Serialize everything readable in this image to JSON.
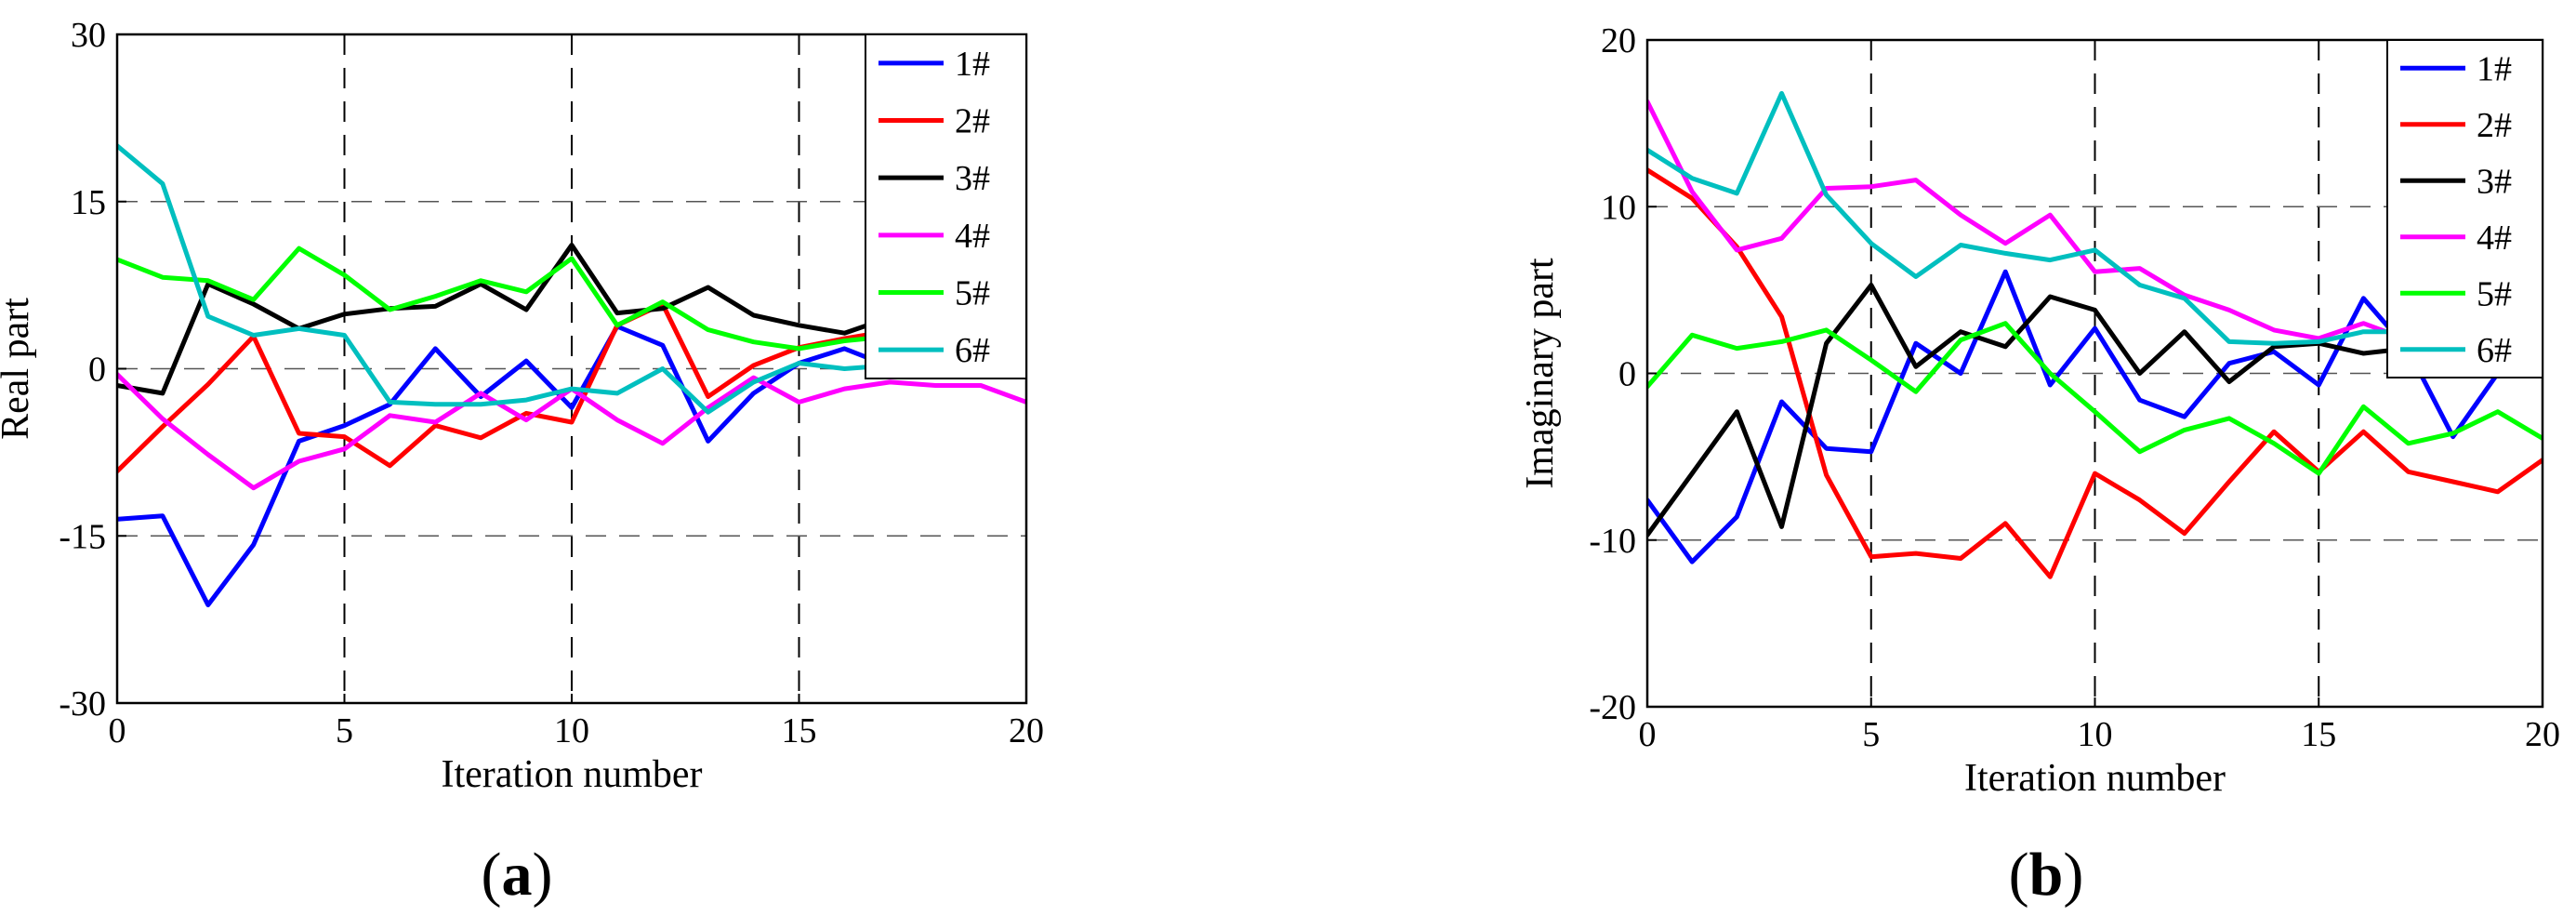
{
  "figure": {
    "panels": [
      {
        "id": "a",
        "label_open": "(",
        "label_letter": "a",
        "label_close": ")"
      },
      {
        "id": "b",
        "label_open": "(",
        "label_letter": "b",
        "label_close": ")"
      }
    ]
  },
  "colors": {
    "1#": "#0000ff",
    "2#": "#ff0000",
    "3#": "#000000",
    "4#": "#ff00ff",
    "5#": "#00ff00",
    "6#": "#00bfbf"
  },
  "chart_data": [
    {
      "type": "line",
      "title": "",
      "xlabel": "Iteration number",
      "ylabel": "Real part",
      "xlim": [
        0,
        20
      ],
      "ylim": [
        -30,
        30
      ],
      "xticks": [
        0,
        5,
        10,
        15,
        20
      ],
      "yticks": [
        -30,
        -15,
        0,
        15,
        30
      ],
      "grid": "dashed",
      "legend_position": "top-right",
      "x": [
        0,
        1,
        2,
        3,
        4,
        5,
        6,
        7,
        8,
        9,
        10,
        11,
        12,
        13,
        14,
        15,
        16,
        17,
        18,
        19,
        20
      ],
      "series": [
        {
          "name": "1#",
          "values": [
            -13.5,
            -13.2,
            -21.2,
            -15.8,
            -6.5,
            -5.1,
            -3.2,
            1.8,
            -2.5,
            0.7,
            -3.5,
            3.8,
            2.1,
            -6.5,
            -2.2,
            0.5,
            1.8,
            0.2,
            null,
            null,
            null
          ]
        },
        {
          "name": "2#",
          "values": [
            -9.2,
            -5.2,
            -1.4,
            2.9,
            -5.8,
            -6.1,
            -8.7,
            -5.1,
            -6.2,
            -4.0,
            -4.8,
            3.9,
            5.8,
            -2.5,
            0.3,
            1.9,
            2.7,
            3.4,
            null,
            null,
            null
          ]
        },
        {
          "name": "3#",
          "values": [
            -1.5,
            -2.2,
            7.6,
            5.8,
            3.6,
            4.9,
            5.4,
            5.6,
            7.6,
            5.3,
            11.1,
            5.0,
            5.4,
            7.3,
            4.8,
            3.9,
            3.2,
            4.6,
            null,
            null,
            null
          ]
        },
        {
          "name": "4#",
          "values": [
            -0.5,
            -4.5,
            -7.7,
            -10.7,
            -8.3,
            -7.2,
            -4.2,
            -4.8,
            -2.2,
            -4.6,
            -1.8,
            -4.6,
            -6.7,
            -3.5,
            -0.8,
            -3.0,
            -1.8,
            -1.2,
            -1.5,
            -1.5,
            -3.0
          ]
        },
        {
          "name": "5#",
          "values": [
            9.8,
            8.2,
            7.9,
            6.2,
            10.8,
            8.4,
            5.3,
            6.5,
            7.9,
            6.9,
            9.9,
            3.9,
            6.0,
            3.5,
            2.4,
            1.8,
            2.5,
            2.9,
            null,
            null,
            null
          ]
        },
        {
          "name": "6#",
          "values": [
            20.0,
            16.6,
            4.7,
            3.0,
            3.6,
            3.0,
            -3.0,
            -3.2,
            -3.2,
            -2.8,
            -1.8,
            -2.2,
            0.0,
            -3.9,
            -1.2,
            0.5,
            0.0,
            0.3,
            null,
            null,
            null
          ]
        }
      ]
    },
    {
      "type": "line",
      "title": "",
      "xlabel": "Iteration number",
      "ylabel": "Imaginary part",
      "xlim": [
        0,
        20
      ],
      "ylim": [
        -20,
        20
      ],
      "xticks": [
        0,
        5,
        10,
        15,
        20
      ],
      "yticks": [
        -20,
        -10,
        0,
        10,
        20
      ],
      "grid": "dashed",
      "legend_position": "top-right",
      "x": [
        0,
        1,
        2,
        3,
        4,
        5,
        6,
        7,
        8,
        9,
        10,
        11,
        12,
        13,
        14,
        15,
        16,
        17,
        18,
        19,
        20
      ],
      "series": [
        {
          "name": "1#",
          "values": [
            -7.6,
            -11.3,
            -8.6,
            -1.7,
            -4.5,
            -4.7,
            1.8,
            0.0,
            6.1,
            -0.7,
            2.7,
            -1.6,
            -2.6,
            0.6,
            1.3,
            -0.7,
            4.5,
            1.4,
            -3.8,
            0.0,
            0.0
          ]
        },
        {
          "name": "2#",
          "values": [
            12.2,
            10.5,
            7.6,
            3.4,
            -6.1,
            -11.0,
            -10.8,
            -11.1,
            -9.0,
            -12.2,
            -6.0,
            -7.6,
            -9.6,
            -6.5,
            -3.5,
            -5.9,
            -3.5,
            -5.9,
            -6.5,
            -7.1,
            -5.2
          ]
        },
        {
          "name": "3#",
          "values": [
            -9.7,
            -6.0,
            -2.3,
            -9.2,
            1.8,
            5.3,
            0.4,
            2.5,
            1.6,
            4.6,
            3.8,
            0.0,
            2.5,
            -0.5,
            1.6,
            1.8,
            1.2,
            1.5,
            null,
            null,
            null
          ]
        },
        {
          "name": "4#",
          "values": [
            16.3,
            10.9,
            7.4,
            8.1,
            11.1,
            11.2,
            11.6,
            9.5,
            7.8,
            9.5,
            6.1,
            6.3,
            4.7,
            3.8,
            2.6,
            2.1,
            3.0,
            2.0,
            null,
            null,
            null
          ]
        },
        {
          "name": "5#",
          "values": [
            -0.8,
            2.3,
            1.5,
            1.9,
            2.6,
            0.8,
            -1.1,
            2.0,
            3.0,
            0.0,
            -2.3,
            -4.7,
            -3.4,
            -2.7,
            -4.2,
            -6.0,
            -2.0,
            -4.2,
            -3.6,
            -2.3,
            -3.9
          ]
        },
        {
          "name": "6#",
          "values": [
            13.4,
            11.7,
            10.8,
            16.8,
            10.7,
            7.8,
            5.8,
            7.7,
            7.2,
            6.8,
            7.4,
            5.3,
            4.5,
            1.9,
            1.8,
            1.9,
            2.5,
            2.5,
            null,
            null,
            null
          ]
        }
      ]
    }
  ]
}
